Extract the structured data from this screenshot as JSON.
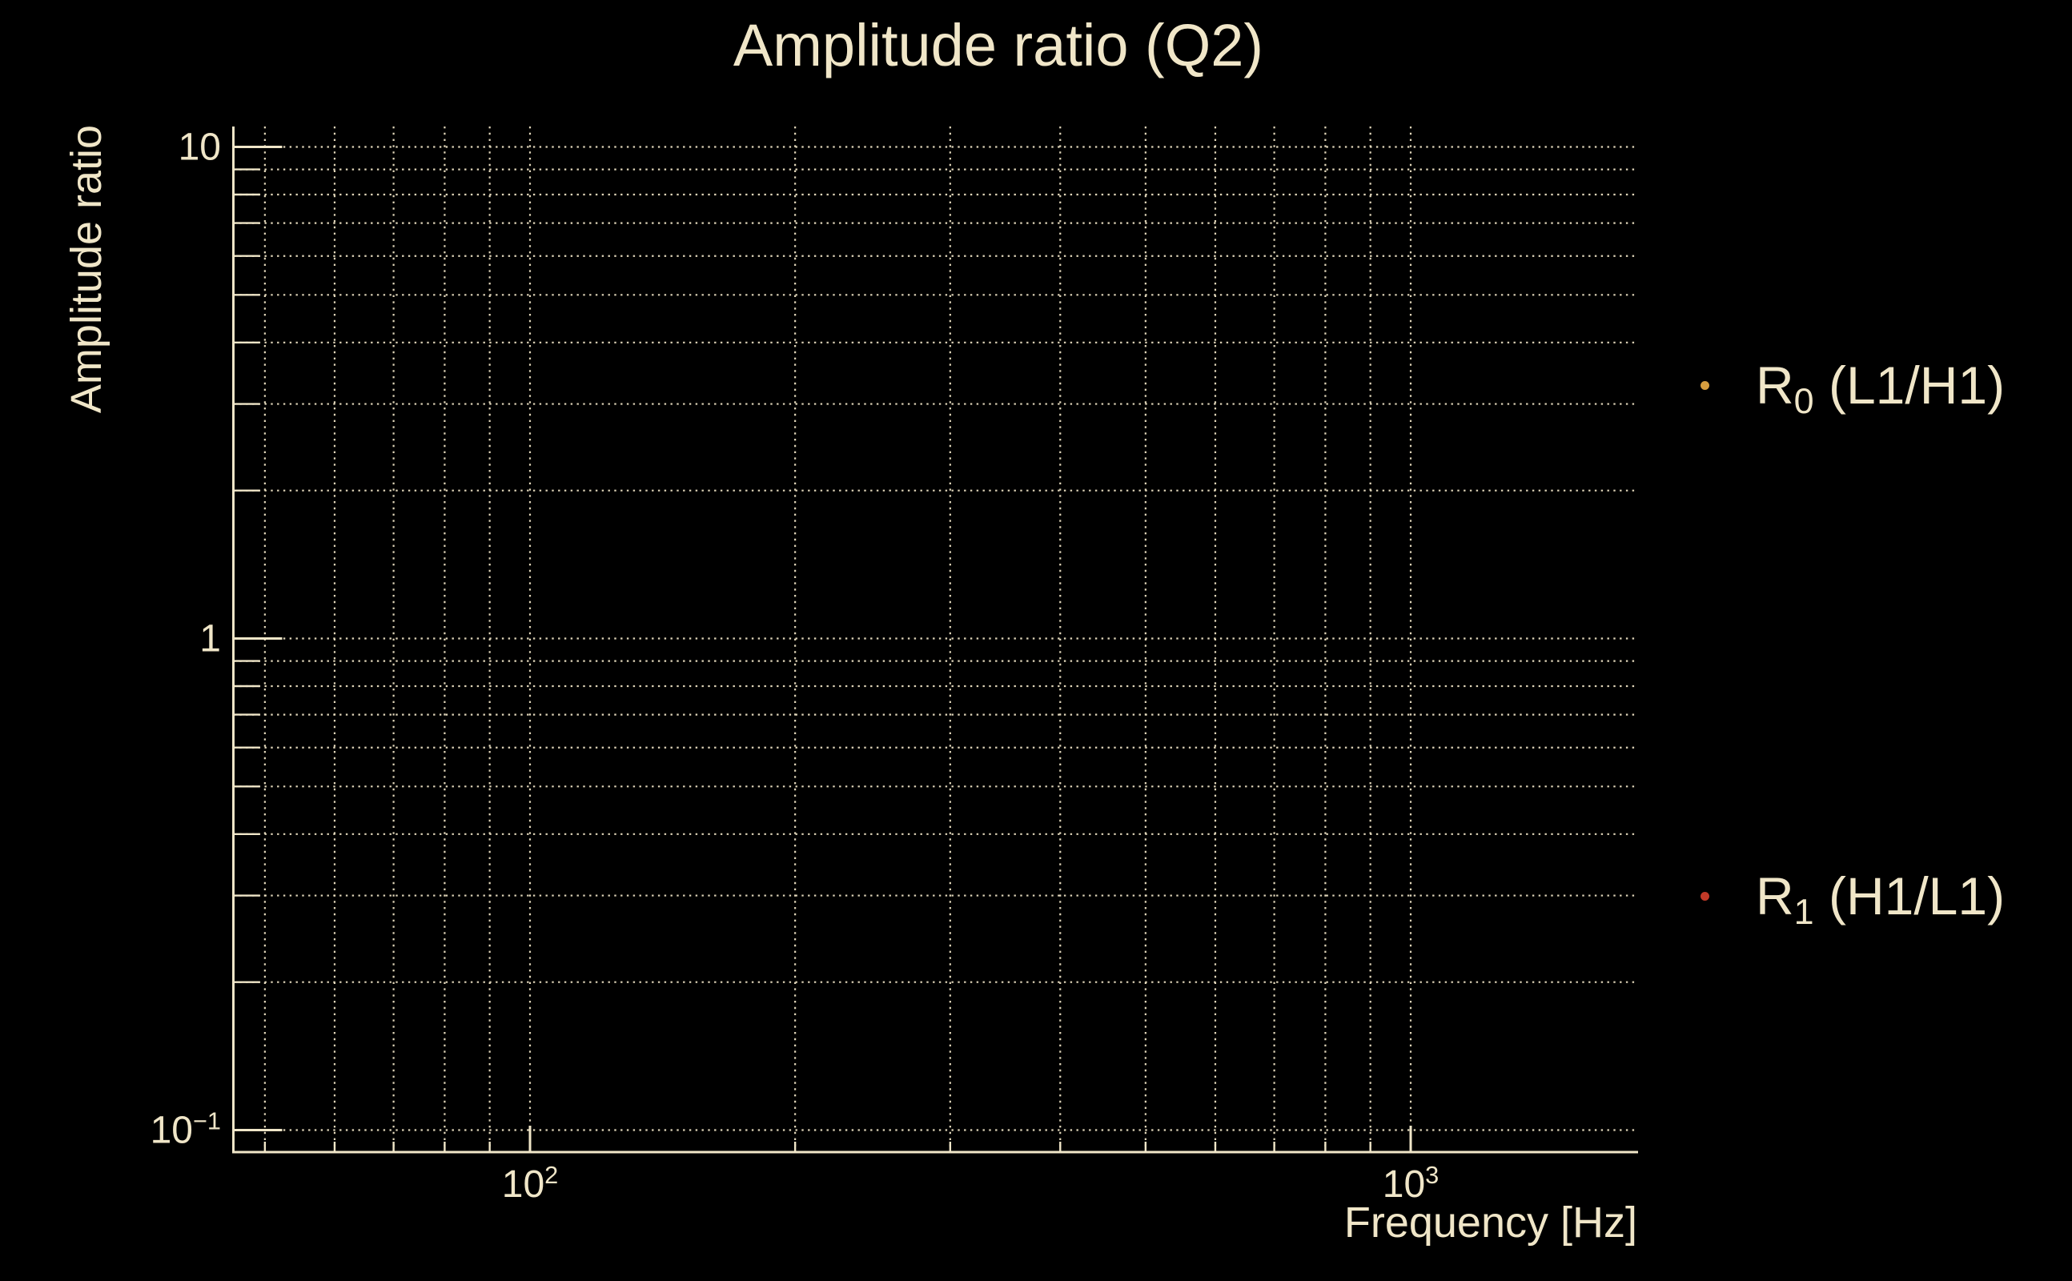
{
  "page": {
    "background": "#000000",
    "text_color": "#f0e6c8"
  },
  "title": {
    "text": "Amplitude ratio (Q2)"
  },
  "axes": {
    "xlabel": "Frequency [Hz]",
    "ylabel": "Amplitude ratio",
    "x_tick_labels": [
      {
        "value": 100,
        "base": "10",
        "exp": "2"
      },
      {
        "value": 1000,
        "base": "10",
        "exp": "3"
      }
    ],
    "y_tick_labels": [
      {
        "value": 10,
        "base": "10",
        "exp": null
      },
      {
        "value": 1,
        "base": "1",
        "exp": null
      },
      {
        "value": 0.1,
        "base": "10",
        "exp": "−1"
      }
    ]
  },
  "legend": {
    "entries": [
      {
        "pre": "R",
        "sub": "0",
        "rest": " (L1/H1)",
        "marker_color": "#d79e3f"
      },
      {
        "pre": "R",
        "sub": "1",
        "rest": " (H1/L1)",
        "marker_color": "#c23a28"
      }
    ]
  },
  "chart_data": {
    "type": "scatter",
    "title": "Amplitude ratio (Q2)",
    "xlabel": "Frequency [Hz]",
    "ylabel": "Amplitude ratio",
    "x_scale": "log",
    "y_scale": "log",
    "xlim": [
      46,
      1810
    ],
    "ylim": [
      0.09,
      11
    ],
    "x_major_gridlines": [
      100,
      1000
    ],
    "x_minor_gridlines": [
      50,
      60,
      70,
      80,
      90,
      200,
      300,
      400,
      500,
      600,
      700,
      800,
      900
    ],
    "y_major_gridlines": [
      10,
      1,
      0.1
    ],
    "y_minor_gridlines": [
      9,
      8,
      7,
      6,
      5,
      4,
      3,
      2,
      0.9,
      0.8,
      0.7,
      0.6,
      0.5,
      0.4,
      0.3,
      0.2
    ],
    "grid_style": "dotted",
    "grid_color": "#ece1c3",
    "spine_color": "#f0e6c8",
    "legend_position": "outside-right",
    "series": [
      {
        "name": "R0 (L1/H1)",
        "marker": "dot",
        "color": "#d79e3f",
        "points": []
      },
      {
        "name": "R1 (H1/L1)",
        "marker": "dot",
        "color": "#c23a28",
        "points": []
      }
    ],
    "note": "no data points visible inside the axes"
  }
}
